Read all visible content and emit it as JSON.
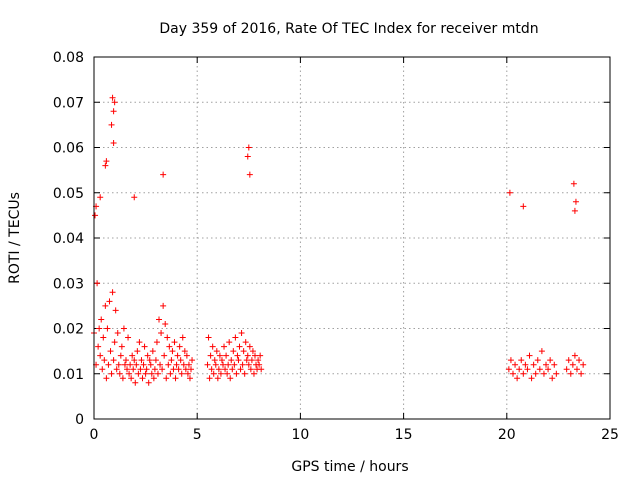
{
  "chart_data": {
    "type": "scatter",
    "title": "Day 359 of 2016, Rate Of TEC Index for receiver mtdn",
    "xlabel": "GPS time / hours",
    "ylabel": "ROTI / TECUs",
    "xlim": [
      0,
      25
    ],
    "ylim": [
      0,
      0.08
    ],
    "x_ticks": [
      0,
      5,
      10,
      15,
      20,
      25
    ],
    "x_tick_labels": [
      "0",
      "5",
      "10",
      "15",
      "20",
      "25"
    ],
    "y_ticks": [
      0,
      0.01,
      0.02,
      0.03,
      0.04,
      0.05,
      0.06,
      0.07,
      0.08
    ],
    "y_tick_labels": [
      "0",
      "0.01",
      "0.02",
      "0.03",
      "0.04",
      "0.05",
      "0.06",
      "0.07",
      "0.08"
    ],
    "grid": true,
    "marker": "plus",
    "color": "#ff0000",
    "series": [
      {
        "x": [
          0.0,
          0.05,
          0.1,
          0.15,
          0.2,
          0.25,
          0.3,
          0.35,
          0.4,
          0.45,
          0.5,
          0.55,
          0.6,
          0.65,
          0.7,
          0.75,
          0.8,
          0.85,
          0.9,
          0.95,
          1.0,
          1.05,
          1.1,
          1.15,
          1.2,
          1.25,
          1.3,
          1.35,
          1.4,
          1.45,
          1.5,
          1.55,
          1.6,
          1.65,
          1.7,
          1.75,
          1.8,
          1.85,
          1.9,
          1.95,
          2.0,
          2.05,
          2.1,
          2.15,
          2.2,
          2.25,
          2.3,
          2.35,
          2.4,
          2.45,
          2.5,
          2.55,
          2.6,
          2.65,
          2.7,
          2.75,
          2.8,
          2.85,
          2.9,
          2.95,
          3.0,
          3.05,
          3.1,
          3.15,
          3.2,
          3.25,
          3.3,
          3.35,
          3.4,
          3.45,
          3.5,
          3.55,
          3.6,
          3.65,
          3.7,
          3.75,
          3.8,
          3.85,
          3.9,
          3.95,
          4.0,
          4.05,
          4.1,
          4.15,
          4.2,
          4.25,
          4.3,
          4.35,
          4.4,
          4.45,
          4.5,
          4.55,
          4.6,
          4.65,
          4.7,
          4.75,
          5.5,
          5.55,
          5.6,
          5.65,
          5.7,
          5.75,
          5.8,
          5.85,
          5.9,
          5.95,
          6.0,
          6.05,
          6.1,
          6.15,
          6.2,
          6.25,
          6.3,
          6.35,
          6.4,
          6.45,
          6.5,
          6.55,
          6.6,
          6.65,
          6.7,
          6.75,
          6.8,
          6.85,
          6.9,
          6.95,
          7.0,
          7.05,
          7.1,
          7.15,
          7.2,
          7.25,
          7.3,
          7.35,
          7.4,
          7.45,
          7.5,
          7.55,
          7.6,
          7.65,
          7.7,
          7.75,
          7.8,
          7.85,
          7.9,
          7.95,
          8.0,
          8.05,
          8.1,
          0.9,
          0.95,
          1.0,
          0.85,
          0.95,
          0.55,
          0.6,
          7.5,
          7.45,
          7.55,
          3.35,
          0.1,
          0.3,
          1.95,
          20.1,
          20.2,
          20.3,
          20.4,
          20.5,
          20.6,
          20.7,
          20.8,
          20.9,
          21.0,
          21.1,
          21.2,
          21.3,
          21.4,
          21.5,
          21.6,
          21.7,
          21.8,
          21.9,
          22.0,
          22.1,
          22.2,
          22.3,
          22.4,
          22.9,
          23.0,
          23.1,
          23.2,
          23.3,
          23.4,
          23.5,
          23.6,
          23.7,
          20.15,
          23.25,
          23.35,
          23.3,
          20.8
        ],
        "y": [
          0.019,
          0.045,
          0.012,
          0.03,
          0.016,
          0.02,
          0.014,
          0.022,
          0.011,
          0.018,
          0.013,
          0.025,
          0.009,
          0.02,
          0.012,
          0.026,
          0.015,
          0.01,
          0.028,
          0.013,
          0.017,
          0.024,
          0.011,
          0.019,
          0.012,
          0.01,
          0.014,
          0.016,
          0.009,
          0.02,
          0.012,
          0.013,
          0.011,
          0.018,
          0.01,
          0.012,
          0.009,
          0.014,
          0.011,
          0.013,
          0.008,
          0.012,
          0.015,
          0.01,
          0.017,
          0.011,
          0.013,
          0.009,
          0.012,
          0.016,
          0.01,
          0.011,
          0.014,
          0.008,
          0.013,
          0.012,
          0.01,
          0.015,
          0.009,
          0.011,
          0.013,
          0.017,
          0.01,
          0.022,
          0.012,
          0.019,
          0.011,
          0.025,
          0.014,
          0.021,
          0.009,
          0.018,
          0.012,
          0.016,
          0.01,
          0.013,
          0.015,
          0.011,
          0.017,
          0.009,
          0.012,
          0.014,
          0.011,
          0.016,
          0.013,
          0.01,
          0.018,
          0.012,
          0.015,
          0.011,
          0.014,
          0.01,
          0.012,
          0.009,
          0.011,
          0.013,
          0.012,
          0.018,
          0.009,
          0.014,
          0.011,
          0.016,
          0.01,
          0.013,
          0.012,
          0.015,
          0.009,
          0.011,
          0.014,
          0.01,
          0.013,
          0.012,
          0.016,
          0.011,
          0.014,
          0.01,
          0.012,
          0.017,
          0.009,
          0.013,
          0.011,
          0.015,
          0.012,
          0.018,
          0.01,
          0.014,
          0.013,
          0.016,
          0.011,
          0.019,
          0.012,
          0.015,
          0.01,
          0.017,
          0.013,
          0.014,
          0.012,
          0.016,
          0.011,
          0.013,
          0.015,
          0.01,
          0.014,
          0.012,
          0.011,
          0.013,
          0.012,
          0.014,
          0.011,
          0.071,
          0.068,
          0.07,
          0.065,
          0.061,
          0.056,
          0.057,
          0.06,
          0.058,
          0.054,
          0.054,
          0.047,
          0.049,
          0.049,
          0.011,
          0.013,
          0.01,
          0.012,
          0.009,
          0.011,
          0.013,
          0.01,
          0.012,
          0.011,
          0.014,
          0.009,
          0.012,
          0.01,
          0.013,
          0.011,
          0.015,
          0.01,
          0.012,
          0.011,
          0.013,
          0.009,
          0.012,
          0.01,
          0.011,
          0.013,
          0.01,
          0.012,
          0.014,
          0.011,
          0.013,
          0.01,
          0.012,
          0.05,
          0.052,
          0.048,
          0.046,
          0.047
        ]
      }
    ]
  }
}
